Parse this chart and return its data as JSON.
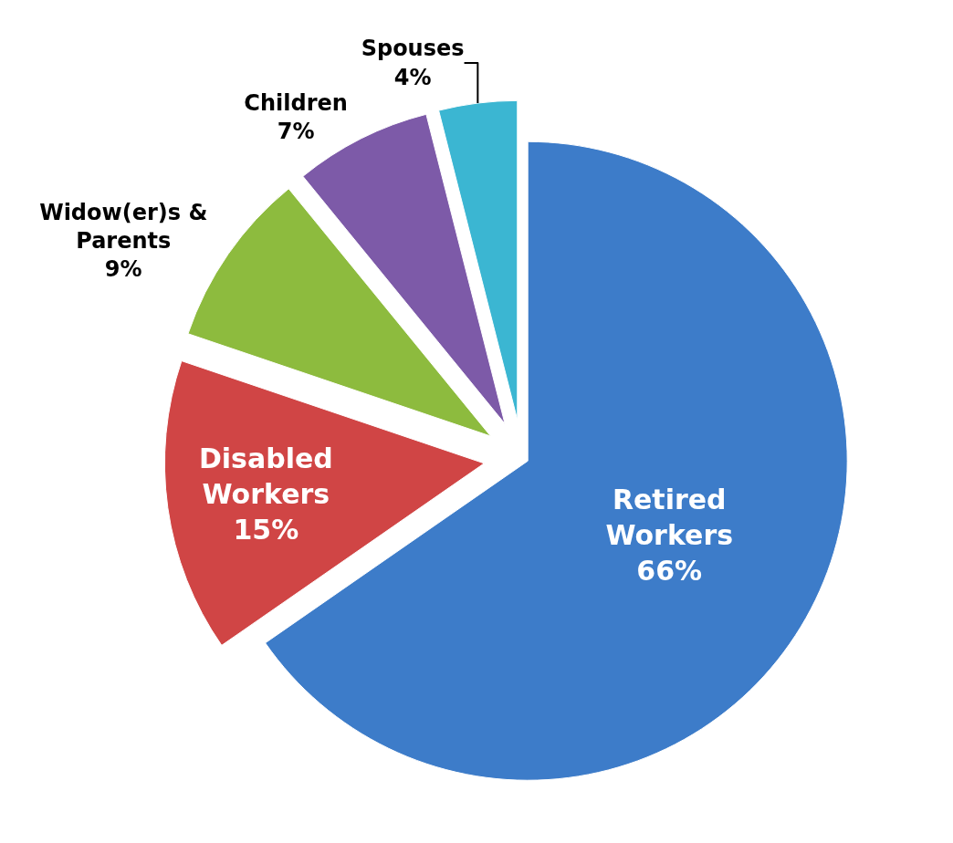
{
  "chart_data": {
    "type": "pie",
    "categories": [
      "Retired Workers",
      "Disabled Workers",
      "Widow(er)s & Parents",
      "Children",
      "Spouses"
    ],
    "values": [
      66,
      15,
      9,
      7,
      4
    ],
    "value_labels": [
      "66%",
      "15%",
      "9%",
      "7%",
      "4%"
    ],
    "colors": [
      "#3d7cc9",
      "#d04545",
      "#8dbb3e",
      "#7d5aa8",
      "#3bb6d2"
    ],
    "legend": false
  }
}
